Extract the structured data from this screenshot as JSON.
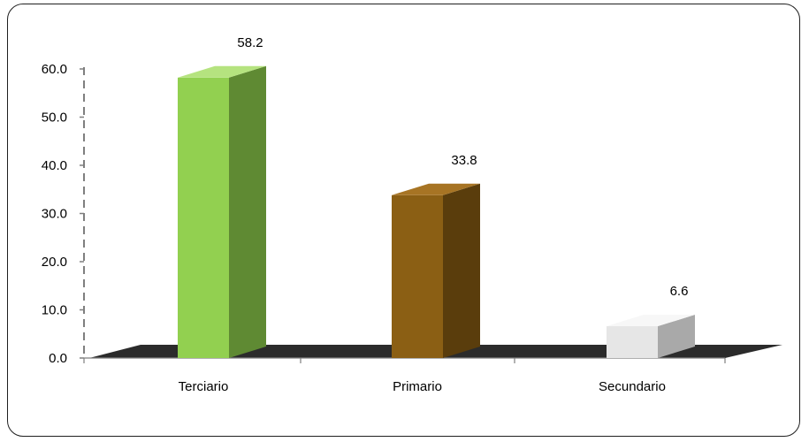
{
  "chart_data": {
    "type": "bar",
    "categories": [
      "Terciario",
      "Primario",
      "Secundario"
    ],
    "values": [
      58.2,
      33.8,
      6.6
    ],
    "data_labels": [
      "58.2",
      "33.8",
      "6.6"
    ],
    "title": "",
    "xlabel": "",
    "ylabel": "",
    "ylim": [
      0,
      60
    ],
    "yticks": [
      "0.0",
      "10.0",
      "20.0",
      "30.0",
      "40.0",
      "50.0",
      "60.0"
    ],
    "style": "3d-column",
    "grid": false,
    "legend": "none",
    "colors": {
      "Terciario": {
        "front": "#92d050",
        "side": "#5f8a33",
        "top": "#b5e37f"
      },
      "Primario": {
        "front": "#8b5f14",
        "side": "#5a3d0c",
        "top": "#a77424"
      },
      "Secundario": {
        "front": "#e6e6e6",
        "side": "#a9a9a9",
        "top": "#f7f7f7"
      },
      "floor": "#2b2b2b",
      "axis": "#7f7f7f"
    }
  }
}
